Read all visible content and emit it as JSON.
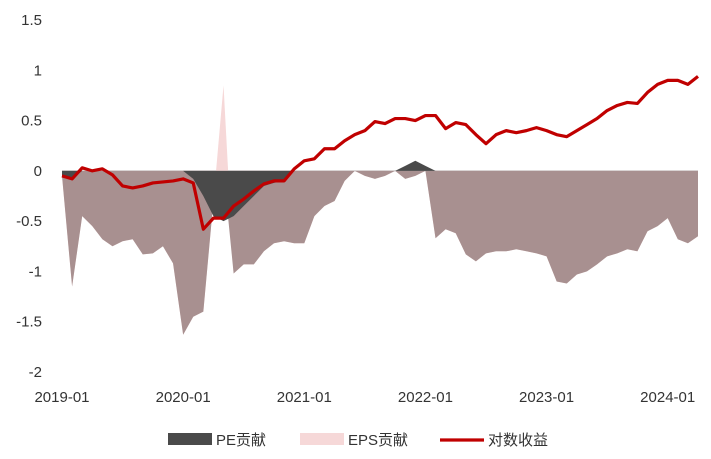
{
  "chart_data": {
    "type": "area",
    "x": [
      "2019-01",
      "2019-02",
      "2019-03",
      "2019-04",
      "2019-05",
      "2019-06",
      "2019-07",
      "2019-08",
      "2019-09",
      "2019-10",
      "2019-11",
      "2019-12",
      "2020-01",
      "2020-02",
      "2020-03",
      "2020-04",
      "2020-05",
      "2020-06",
      "2020-07",
      "2020-08",
      "2020-09",
      "2020-10",
      "2020-11",
      "2020-12",
      "2021-01",
      "2021-02",
      "2021-03",
      "2021-04",
      "2021-05",
      "2021-06",
      "2021-07",
      "2021-08",
      "2021-09",
      "2021-10",
      "2021-11",
      "2021-12",
      "2022-01",
      "2022-02",
      "2022-03",
      "2022-04",
      "2022-05",
      "2022-06",
      "2022-07",
      "2022-08",
      "2022-09",
      "2022-10",
      "2022-11",
      "2022-12",
      "2023-01",
      "2023-02",
      "2023-03",
      "2023-04",
      "2023-05",
      "2023-06",
      "2023-07",
      "2023-08",
      "2023-09",
      "2023-10",
      "2023-11",
      "2023-12",
      "2024-01",
      "2024-02",
      "2024-03",
      "2024-04"
    ],
    "xticks": [
      "2019-01",
      "2020-01",
      "2021-01",
      "2022-01",
      "2023-01",
      "2024-01"
    ],
    "yticks": [
      1.5,
      1,
      0.5,
      0,
      -0.5,
      -1,
      -1.5,
      -2
    ],
    "ylim": [
      -2,
      1.5
    ],
    "series": [
      {
        "name": "PE贡献",
        "kind": "area",
        "color": "#4a4a4a",
        "values": [
          -0.05,
          -0.08,
          0,
          0,
          0,
          0,
          0,
          0,
          0,
          0,
          0,
          0,
          0,
          -0.08,
          -0.25,
          -0.45,
          -0.5,
          -0.45,
          -0.35,
          -0.25,
          -0.15,
          -0.12,
          -0.1,
          0,
          0,
          0,
          0,
          0,
          0,
          0,
          0,
          0,
          0,
          0,
          0.05,
          0.1,
          0.05,
          0,
          0,
          0,
          0,
          0,
          0,
          0,
          0,
          0,
          0,
          0,
          0,
          0,
          0,
          0,
          0,
          0,
          0,
          0,
          0,
          0,
          0,
          0,
          0,
          0,
          0,
          0
        ]
      },
      {
        "name": "EPS贡献",
        "kind": "area",
        "color": "#f6d8d8",
        "values": [
          -0.05,
          -1.15,
          -0.45,
          -0.55,
          -0.68,
          -0.75,
          -0.7,
          -0.68,
          -0.83,
          -0.82,
          -0.75,
          -0.92,
          -1.63,
          -1.45,
          -1.4,
          -0.3,
          0.85,
          -1.02,
          -0.93,
          -0.93,
          -0.8,
          -0.72,
          -0.7,
          -0.72,
          -0.72,
          -0.45,
          -0.35,
          -0.3,
          -0.1,
          0,
          -0.05,
          -0.08,
          -0.05,
          0,
          -0.08,
          -0.05,
          0,
          -0.67,
          -0.58,
          -0.62,
          -0.83,
          -0.9,
          -0.82,
          -0.8,
          -0.8,
          -0.78,
          -0.8,
          -0.82,
          -0.85,
          -1.1,
          -1.12,
          -1.03,
          -1,
          -0.93,
          -0.85,
          -0.82,
          -0.78,
          -0.8,
          -0.6,
          -0.55,
          -0.47,
          -0.68,
          -0.72,
          -0.65
        ]
      },
      {
        "name": "对数收益",
        "kind": "line",
        "color": "#c00000",
        "values": [
          -0.05,
          -0.08,
          0.03,
          0,
          0.02,
          -0.04,
          -0.15,
          -0.17,
          -0.15,
          -0.12,
          -0.11,
          -0.1,
          -0.08,
          -0.12,
          -0.58,
          -0.47,
          -0.47,
          -0.35,
          -0.28,
          -0.2,
          -0.13,
          -0.1,
          -0.1,
          0.02,
          0.1,
          0.12,
          0.22,
          0.22,
          0.3,
          0.36,
          0.4,
          0.49,
          0.47,
          0.52,
          0.52,
          0.5,
          0.55,
          0.55,
          0.42,
          0.48,
          0.46,
          0.36,
          0.27,
          0.36,
          0.4,
          0.38,
          0.4,
          0.43,
          0.4,
          0.36,
          0.34,
          0.4,
          0.46,
          0.52,
          0.6,
          0.65,
          0.68,
          0.67,
          0.78,
          0.86,
          0.9,
          0.9,
          0.86,
          0.94
        ]
      }
    ],
    "legend_position": "bottom",
    "grid": false
  }
}
